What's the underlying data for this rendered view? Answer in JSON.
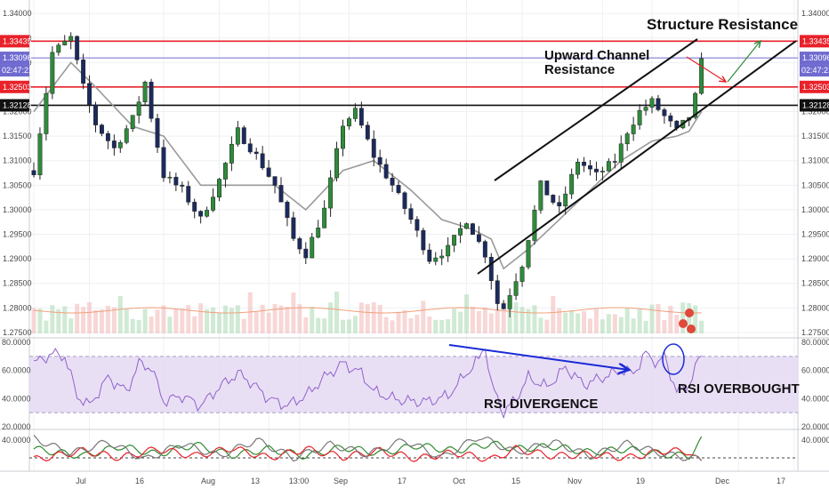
{
  "chart_data": {
    "type": "candlestick",
    "price_axis": {
      "ticks": [
        "1.34000",
        "1.33500",
        "1.33000",
        "1.32500",
        "1.32000",
        "1.31500",
        "1.31000",
        "1.30500",
        "1.30000",
        "1.29500",
        "1.29000",
        "1.28500",
        "1.28000",
        "1.27500"
      ],
      "range": [
        1.2748,
        1.3413
      ]
    },
    "rsi_axis": {
      "ticks": [
        "80.0000",
        "60.0000",
        "40.0000",
        "20.0000"
      ],
      "range": [
        20,
        80
      ],
      "band": [
        30,
        70
      ]
    },
    "osc_axis": {
      "ticks": [
        "40.0000"
      ],
      "range": [
        5,
        50
      ],
      "level": 20
    },
    "x_axis": {
      "labels": [
        "Jul",
        "16",
        "Aug",
        "13",
        "13:00",
        "Sep",
        "17",
        "Oct",
        "15",
        "Nov",
        "19",
        "Dec",
        "17"
      ]
    },
    "horizontal_levels": [
      {
        "value": 1.33435,
        "label": "1.33435",
        "color": "#e8222a"
      },
      {
        "value": 1.33096,
        "label": "1.33096",
        "color": "#6f6bd0"
      },
      {
        "value": 1.32503,
        "label": "1.32503",
        "color": "#e8222a"
      },
      {
        "value": 1.32128,
        "label": "1.32128",
        "color": "#111111"
      }
    ],
    "price_label_time": "02:47:21",
    "annotations": [
      {
        "text": "Structure Resistance"
      },
      {
        "text": "Upward Channel"
      },
      {
        "text": "Resistance"
      },
      {
        "text": "RSI DIVERGENCE"
      },
      {
        "text": "RSI OVERBOUGHT"
      }
    ],
    "price_path": [
      [
        0,
        1.308
      ],
      [
        3,
        1.332
      ],
      [
        6,
        1.335
      ],
      [
        8,
        1.325
      ],
      [
        10,
        1.3175
      ],
      [
        13,
        1.3125
      ],
      [
        16,
        1.3185
      ],
      [
        18,
        1.326
      ],
      [
        19,
        1.319
      ],
      [
        21,
        1.307
      ],
      [
        24,
        1.304
      ],
      [
        27,
        1.298
      ],
      [
        30,
        1.306
      ],
      [
        33,
        1.316
      ],
      [
        36,
        1.311
      ],
      [
        39,
        1.305
      ],
      [
        42,
        1.294
      ],
      [
        44,
        1.291
      ],
      [
        47,
        1.3
      ],
      [
        50,
        1.3175
      ],
      [
        52,
        1.32
      ],
      [
        55,
        1.311
      ],
      [
        58,
        1.305
      ],
      [
        61,
        1.298
      ],
      [
        64,
        1.29
      ],
      [
        67,
        1.292
      ],
      [
        70,
        1.298
      ],
      [
        73,
        1.291
      ],
      [
        75,
        1.281
      ],
      [
        76,
        1.28
      ],
      [
        79,
        1.289
      ],
      [
        82,
        1.305
      ],
      [
        85,
        1.3
      ],
      [
        88,
        1.31
      ],
      [
        91,
        1.307
      ],
      [
        94,
        1.31
      ],
      [
        96,
        1.316
      ],
      [
        98,
        1.32
      ],
      [
        100,
        1.322
      ],
      [
        102,
        1.319
      ],
      [
        104,
        1.316
      ],
      [
        106,
        1.319
      ],
      [
        107,
        1.323
      ],
      [
        108,
        1.33
      ]
    ],
    "sma_path": [
      [
        0,
        1.32
      ],
      [
        6,
        1.33
      ],
      [
        10,
        1.325
      ],
      [
        16,
        1.317
      ],
      [
        21,
        1.315
      ],
      [
        27,
        1.305
      ],
      [
        33,
        1.305
      ],
      [
        39,
        1.305
      ],
      [
        44,
        1.3
      ],
      [
        50,
        1.308
      ],
      [
        55,
        1.31
      ],
      [
        61,
        1.304
      ],
      [
        66,
        1.298
      ],
      [
        71,
        1.296
      ],
      [
        74,
        1.294
      ],
      [
        76,
        1.288
      ],
      [
        80,
        1.292
      ],
      [
        85,
        1.298
      ],
      [
        90,
        1.304
      ],
      [
        95,
        1.31
      ],
      [
        100,
        1.314
      ],
      [
        104,
        1.315
      ],
      [
        106,
        1.316
      ],
      [
        108,
        1.32
      ]
    ],
    "rsi_path": [
      [
        0,
        65
      ],
      [
        3,
        72
      ],
      [
        5,
        70
      ],
      [
        7,
        42
      ],
      [
        9,
        35
      ],
      [
        12,
        55
      ],
      [
        15,
        45
      ],
      [
        17,
        65
      ],
      [
        19,
        62
      ],
      [
        21,
        38
      ],
      [
        24,
        42
      ],
      [
        27,
        35
      ],
      [
        30,
        48
      ],
      [
        33,
        58
      ],
      [
        35,
        52
      ],
      [
        38,
        40
      ],
      [
        41,
        35
      ],
      [
        44,
        42
      ],
      [
        47,
        55
      ],
      [
        50,
        65
      ],
      [
        53,
        58
      ],
      [
        55,
        45
      ],
      [
        58,
        40
      ],
      [
        61,
        38
      ],
      [
        64,
        38
      ],
      [
        67,
        42
      ],
      [
        70,
        58
      ],
      [
        72,
        68
      ],
      [
        73,
        78
      ],
      [
        74,
        50
      ],
      [
        76,
        30
      ],
      [
        78,
        40
      ],
      [
        80,
        55
      ],
      [
        83,
        48
      ],
      [
        86,
        62
      ],
      [
        89,
        50
      ],
      [
        92,
        55
      ],
      [
        95,
        60
      ],
      [
        97,
        58
      ],
      [
        99,
        72
      ],
      [
        101,
        65
      ],
      [
        102,
        70
      ],
      [
        104,
        45
      ],
      [
        106,
        50
      ],
      [
        108,
        72
      ]
    ],
    "osc_series": [
      {
        "color": "#2f8a2f",
        "values": [
          [
            0,
            30
          ],
          [
            8,
            22
          ],
          [
            14,
            33
          ],
          [
            20,
            24
          ],
          [
            26,
            35
          ],
          [
            32,
            23
          ],
          [
            38,
            30
          ],
          [
            44,
            22
          ],
          [
            50,
            32
          ],
          [
            56,
            25
          ],
          [
            62,
            34
          ],
          [
            68,
            28
          ],
          [
            74,
            36
          ],
          [
            78,
            30
          ],
          [
            84,
            33
          ],
          [
            90,
            26
          ],
          [
            96,
            30
          ],
          [
            102,
            24
          ],
          [
            106,
            22
          ],
          [
            108,
            40
          ]
        ]
      },
      {
        "color": "#e8222a",
        "values": [
          [
            0,
            18
          ],
          [
            8,
            28
          ],
          [
            14,
            20
          ],
          [
            20,
            30
          ],
          [
            26,
            22
          ],
          [
            32,
            31
          ],
          [
            38,
            20
          ],
          [
            44,
            30
          ],
          [
            50,
            21
          ],
          [
            56,
            28
          ],
          [
            62,
            19
          ],
          [
            68,
            26
          ],
          [
            74,
            18
          ],
          [
            78,
            30
          ],
          [
            84,
            22
          ],
          [
            90,
            24
          ],
          [
            96,
            20
          ],
          [
            102,
            28
          ],
          [
            106,
            27
          ],
          [
            108,
            14
          ]
        ]
      },
      {
        "color": "#777777",
        "values": [
          [
            0,
            42
          ],
          [
            6,
            25
          ],
          [
            12,
            38
          ],
          [
            18,
            18
          ],
          [
            24,
            36
          ],
          [
            30,
            22
          ],
          [
            36,
            40
          ],
          [
            42,
            20
          ],
          [
            48,
            35
          ],
          [
            54,
            24
          ],
          [
            60,
            40
          ],
          [
            66,
            20
          ],
          [
            72,
            44
          ],
          [
            78,
            26
          ],
          [
            84,
            38
          ],
          [
            90,
            22
          ],
          [
            96,
            36
          ],
          [
            102,
            24
          ],
          [
            106,
            20
          ],
          [
            108,
            18
          ]
        ]
      }
    ]
  }
}
